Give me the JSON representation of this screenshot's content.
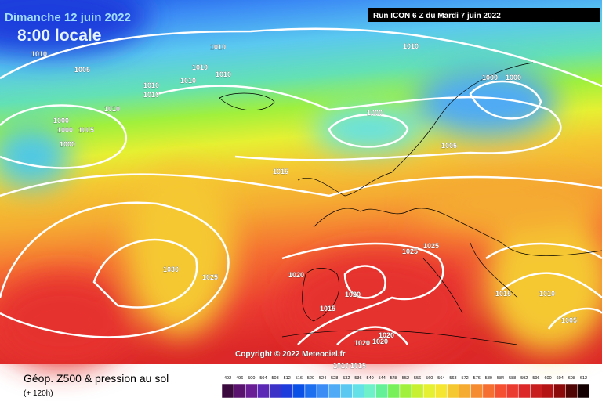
{
  "header": {
    "date": "Dimanche 12 juin 2022",
    "time": "8:00 locale",
    "run": "Run ICON 6 Z du Mardi 7 juin 2022"
  },
  "copyright": "Copyright © 2022 Meteociel.fr",
  "footer": {
    "title": "Géop. Z500 & pression au sol",
    "lead": "(+ 120h)"
  },
  "scale": {
    "values": [
      492,
      496,
      500,
      504,
      508,
      512,
      516,
      520,
      524,
      528,
      532,
      536,
      540,
      544,
      548,
      552,
      556,
      560,
      564,
      568,
      572,
      576,
      580,
      584,
      588,
      592,
      596,
      600,
      604,
      608,
      612
    ],
    "colors": [
      "#3a0a3e",
      "#5a1470",
      "#6a1e96",
      "#5a28b4",
      "#3c32c8",
      "#1e3cdc",
      "#0a50e6",
      "#1e6ef0",
      "#3c8cf5",
      "#50aaf5",
      "#5ac8f0",
      "#64e1e6",
      "#6ef0c8",
      "#64f096",
      "#78f05a",
      "#a0f03c",
      "#c8f032",
      "#e6f032",
      "#f5e632",
      "#f5c832",
      "#f5aa32",
      "#f58c32",
      "#f56e32",
      "#f55032",
      "#eb3c32",
      "#dc2828",
      "#c81e1e",
      "#b41414",
      "#8c0a0a",
      "#500505",
      "#140000"
    ]
  },
  "isobars": [
    "1010",
    "1005",
    "1010",
    "1010",
    "1010",
    "1010",
    "1010",
    "1010",
    "1010",
    "1000",
    "1000",
    "1005",
    "1000",
    "1000",
    "1010",
    "1000",
    "1000",
    "1005",
    "1015",
    "1025",
    "1025",
    "1030",
    "1025",
    "1020",
    "1020",
    "1015",
    "1015",
    "1010",
    "1005",
    "1020",
    "1020",
    "1020",
    "1010",
    "1015"
  ]
}
